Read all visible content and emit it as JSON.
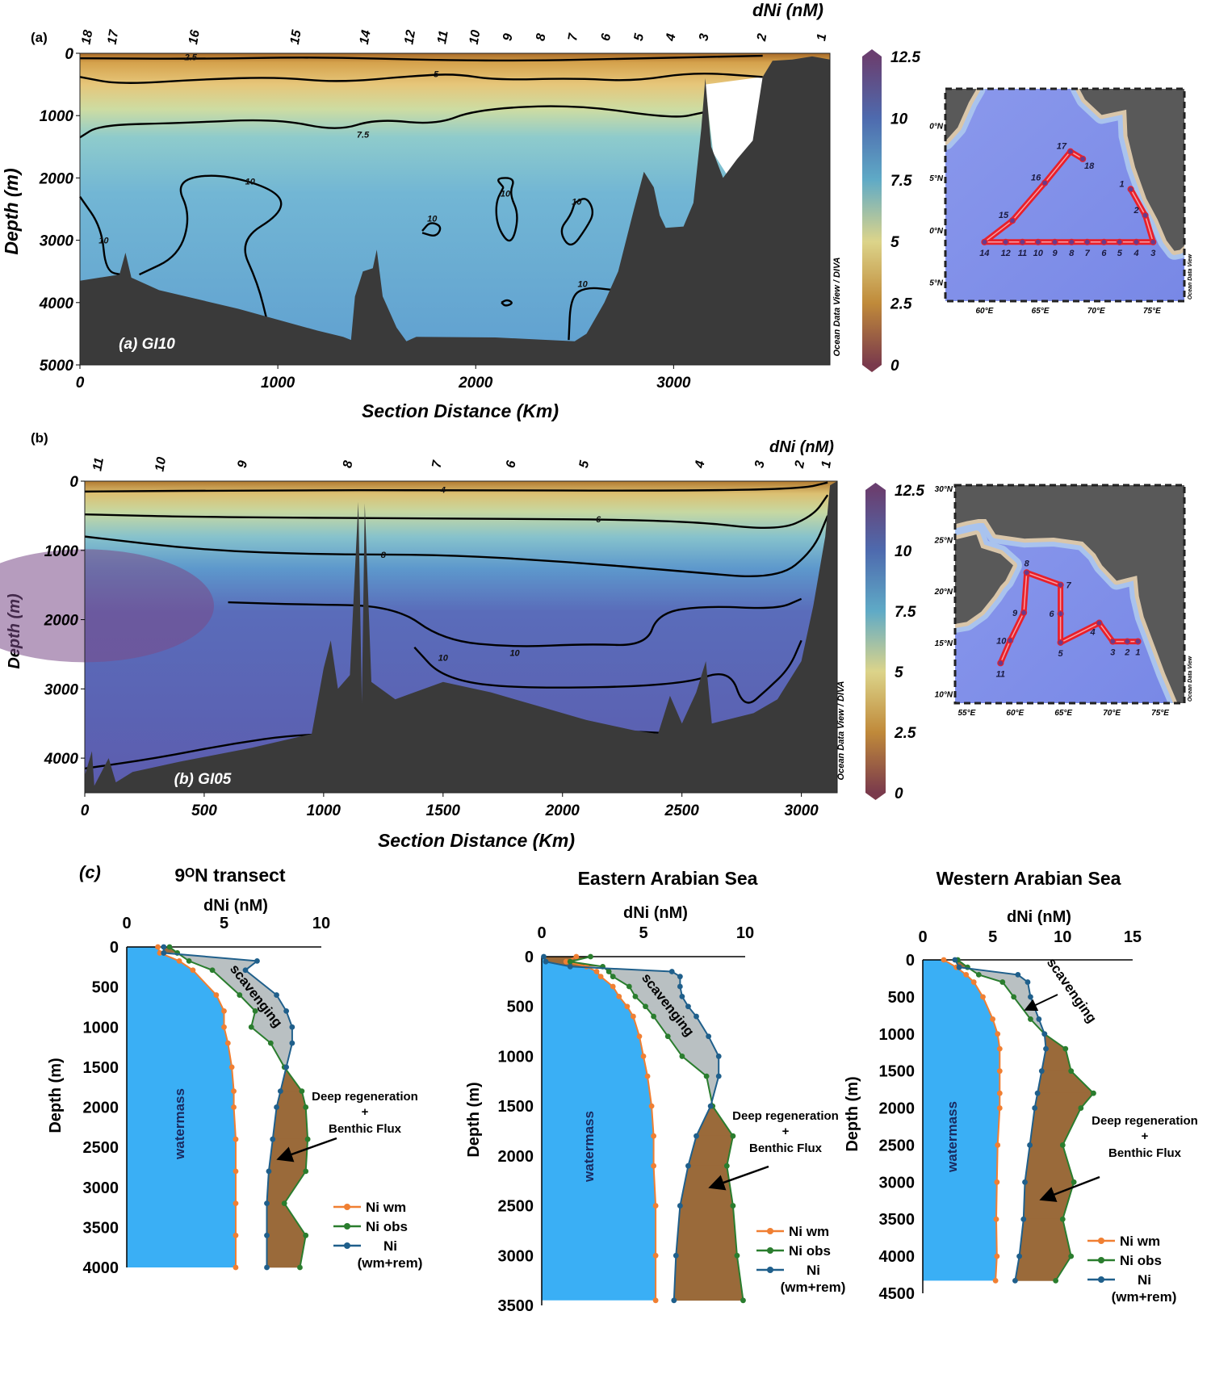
{
  "chart_data": [
    {
      "type": "heatmap",
      "panel_label": "(a)",
      "inner_label": "(a) GI10",
      "xlabel": "Section Distance (Km)",
      "ylabel": "Depth (m)",
      "xlim": [
        0,
        3790
      ],
      "ylim": [
        5000,
        0
      ],
      "xticks": [
        "0",
        "1000",
        "2000",
        "3000"
      ],
      "yticks": [
        "0",
        "1000",
        "2000",
        "3000",
        "4000",
        "5000"
      ],
      "colorbar": {
        "label": "dNi (nM)",
        "ticks": [
          "12.5",
          "10",
          "7.5",
          "5",
          "2.5",
          "0"
        ],
        "range": [
          0,
          12.5
        ]
      },
      "contour_levels": [
        "2.5",
        "5",
        "7.5",
        "10",
        "10",
        "10",
        "10",
        "10",
        "10",
        "10"
      ],
      "stations": [
        {
          "label": "18",
          "km": 36
        },
        {
          "label": "17",
          "km": 167
        },
        {
          "label": "16",
          "km": 577
        },
        {
          "label": "15",
          "km": 1090
        },
        {
          "label": "14",
          "km": 1441
        },
        {
          "label": "12",
          "km": 1667
        },
        {
          "label": "11",
          "km": 1833
        },
        {
          "label": "10",
          "km": 1995
        },
        {
          "label": "9",
          "km": 2162
        },
        {
          "label": "8",
          "km": 2329
        },
        {
          "label": "7",
          "km": 2491
        },
        {
          "label": "6",
          "km": 2658
        },
        {
          "label": "5",
          "km": 2824
        },
        {
          "label": "4",
          "km": 2986
        },
        {
          "label": "3",
          "km": 3153
        },
        {
          "label": "2",
          "km": 3446
        },
        {
          "label": "1",
          "km": 3748
        }
      ],
      "credit": "Ocean Data View / DIVA",
      "map": {
        "lat_labels": [
          "0°N",
          "5°N",
          "0°N",
          "5°N"
        ],
        "lon_labels": [
          "60°E",
          "65°E",
          "70°E",
          "75°E"
        ],
        "credit": "Ocean Data View",
        "stations": [
          {
            "label": "1",
            "lon": 73.1,
            "lat": 13.9
          },
          {
            "label": "2",
            "lon": 74.4,
            "lat": 11.4
          },
          {
            "label": "3",
            "lon": 75.1,
            "lat": 8.85
          },
          {
            "label": "4",
            "lon": 73.6,
            "lat": 8.85
          },
          {
            "label": "5",
            "lon": 72.1,
            "lat": 8.85
          },
          {
            "label": "6",
            "lon": 70.7,
            "lat": 8.85
          },
          {
            "label": "7",
            "lon": 69.2,
            "lat": 8.85
          },
          {
            "label": "8",
            "lon": 67.8,
            "lat": 8.85
          },
          {
            "label": "9",
            "lon": 66.3,
            "lat": 8.85
          },
          {
            "label": "10",
            "lon": 64.8,
            "lat": 8.85
          },
          {
            "label": "11",
            "lon": 63.4,
            "lat": 8.85
          },
          {
            "label": "12",
            "lon": 61.9,
            "lat": 8.85
          },
          {
            "label": "14",
            "lon": 60.0,
            "lat": 8.85
          },
          {
            "label": "15",
            "lon": 62.5,
            "lat": 10.9
          },
          {
            "label": "16",
            "lon": 65.4,
            "lat": 14.5
          },
          {
            "label": "17",
            "lon": 67.7,
            "lat": 17.5
          },
          {
            "label": "18",
            "lon": 68.8,
            "lat": 16.8
          }
        ]
      }
    },
    {
      "type": "heatmap",
      "panel_label": "(b)",
      "inner_label": "(b) GI05",
      "xlabel": "Section Distance (Km)",
      "ylabel": "Depth (m)",
      "xlim": [
        0,
        3150
      ],
      "ylim": [
        4500,
        0
      ],
      "xticks": [
        "0",
        "500",
        "1000",
        "1500",
        "2000",
        "2500",
        "3000"
      ],
      "yticks": [
        "0",
        "1000",
        "2000",
        "3000",
        "4000"
      ],
      "colorbar": {
        "label": "dNi (nM)",
        "ticks": [
          "12.5",
          "10",
          "7.5",
          "5",
          "2.5",
          "0"
        ],
        "range": [
          0,
          12.5
        ]
      },
      "contour_levels": [
        "4",
        "6",
        "8",
        "10",
        "10",
        "10"
      ],
      "stations": [
        {
          "label": "11",
          "km": 56
        },
        {
          "label": "10",
          "km": 317
        },
        {
          "label": "9",
          "km": 660
        },
        {
          "label": "8",
          "km": 1101
        },
        {
          "label": "7",
          "km": 1474
        },
        {
          "label": "6",
          "km": 1784
        },
        {
          "label": "5",
          "km": 2090
        },
        {
          "label": "4",
          "km": 2575
        },
        {
          "label": "3",
          "km": 2825
        },
        {
          "label": "2",
          "km": 2993
        },
        {
          "label": "1",
          "km": 3104
        }
      ],
      "credit": "Ocean Data View / DIVA",
      "map": {
        "lat_labels": [
          "30°N",
          "25°N",
          "20°N",
          "15°N",
          "10°N"
        ],
        "lon_labels": [
          "55°E",
          "60°E",
          "65°E",
          "70°E",
          "75°E"
        ],
        "credit": "Ocean Data View",
        "stations": [
          {
            "label": "1",
            "lon": 72.7,
            "lat": 15.1
          },
          {
            "label": "2",
            "lon": 71.6,
            "lat": 15.1
          },
          {
            "label": "3",
            "lon": 70.1,
            "lat": 15.1
          },
          {
            "label": "4",
            "lon": 68.7,
            "lat": 16.9
          },
          {
            "label": "5",
            "lon": 64.7,
            "lat": 15.0
          },
          {
            "label": "6",
            "lon": 64.7,
            "lat": 17.8
          },
          {
            "label": "7",
            "lon": 64.7,
            "lat": 20.6
          },
          {
            "label": "8",
            "lon": 61.2,
            "lat": 21.8
          },
          {
            "label": "9",
            "lon": 60.9,
            "lat": 17.9
          },
          {
            "label": "10",
            "lon": 59.5,
            "lat": 15.2
          },
          {
            "label": "11",
            "lon": 58.5,
            "lat": 13.0
          }
        ]
      }
    },
    {
      "type": "line",
      "panel_label": "(c)",
      "title": "9ᴼN transect",
      "xlabel": "dNi (nM)",
      "ylabel": "Depth (m)",
      "xlim": [
        0,
        10
      ],
      "ylim": [
        4000,
        0
      ],
      "xticks": [
        "0",
        "5",
        "10"
      ],
      "yticks": [
        "0",
        "500",
        "1000",
        "1500",
        "2000",
        "2500",
        "3000",
        "3500",
        "4000"
      ],
      "depth": [
        0,
        75,
        175,
        290,
        600,
        800,
        1000,
        1200,
        1500,
        1800,
        2000,
        2400,
        2800,
        3200,
        3600,
        4000
      ],
      "series": [
        {
          "name": "Ni wm",
          "values": [
            1.6,
            1.7,
            2.7,
            3.4,
            4.6,
            5.0,
            5.0,
            5.2,
            5.4,
            5.5,
            5.5,
            5.6,
            5.6,
            5.6,
            5.6,
            5.6
          ]
        },
        {
          "name": "Ni obs",
          "values": [
            2.2,
            2.6,
            3.2,
            4.4,
            5.8,
            6.6,
            6.4,
            7.4,
            8.1,
            9.0,
            9.2,
            9.3,
            9.2,
            8.1,
            9.2,
            8.9
          ]
        },
        {
          "name": "Ni",
          "name_line2": "(wm+rem)",
          "values": [
            1.9,
            1.9,
            6.7,
            6.1,
            7.7,
            8.2,
            8.5,
            8.5,
            8.2,
            7.9,
            7.7,
            7.5,
            7.3,
            7.2,
            7.2,
            7.2
          ]
        }
      ],
      "annotations": {
        "watermass": "watermass",
        "scavenging": "scavenging",
        "deep1": "Deep regeneration",
        "plus": "+",
        "deep2": "Benthic Flux"
      }
    },
    {
      "type": "line",
      "title": "Eastern Arabian Sea",
      "xlabel": "dNi (nM)",
      "ylabel": "Depth (m)",
      "xlim": [
        0,
        10
      ],
      "ylim": [
        3500,
        0
      ],
      "xticks": [
        "0",
        "5",
        "10"
      ],
      "yticks": [
        "0",
        "500",
        "1000",
        "1500",
        "2000",
        "2500",
        "3000",
        "3500"
      ],
      "depth": [
        0,
        50,
        100,
        150,
        200,
        300,
        400,
        500,
        600,
        800,
        1000,
        1200,
        1500,
        1800,
        2100,
        2500,
        3000,
        3450
      ],
      "series": [
        {
          "name": "Ni wm",
          "values": [
            1.7,
            1.2,
            2.2,
            2.7,
            2.9,
            3.5,
            3.8,
            4.2,
            4.5,
            4.8,
            5.0,
            5.2,
            5.4,
            5.5,
            5.5,
            5.6,
            5.6,
            5.6
          ]
        },
        {
          "name": "Ni obs",
          "values": [
            2.4,
            1.4,
            3.0,
            3.3,
            3.5,
            4.3,
            4.6,
            5.1,
            5.5,
            6.2,
            6.9,
            8.1,
            8.4,
            9.4,
            9.1,
            9.4,
            9.6,
            9.9
          ]
        },
        {
          "name": "Ni",
          "name_line2": "(wm+rem)",
          "values": [
            0.1,
            0.2,
            1.4,
            6.4,
            6.8,
            6.8,
            6.9,
            7.2,
            7.6,
            8.2,
            8.7,
            8.7,
            8.3,
            7.6,
            7.2,
            6.8,
            6.6,
            6.5
          ]
        }
      ],
      "annotations": {
        "watermass": "watermass",
        "scavenging": "scavenging",
        "deep1": "Deep regeneration",
        "plus": "+",
        "deep2": "Benthic Flux"
      }
    },
    {
      "type": "line",
      "title": "Western Arabian Sea",
      "xlabel": "dNi (nM)",
      "ylabel": "Depth (m)",
      "xlim": [
        0,
        15
      ],
      "ylim": [
        4500,
        0
      ],
      "xticks": [
        "0",
        "5",
        "10",
        "15"
      ],
      "yticks": [
        "0",
        "500",
        "1000",
        "1500",
        "2000",
        "2500",
        "3000",
        "3500",
        "4000",
        "4500"
      ],
      "depth": [
        0,
        100,
        200,
        300,
        500,
        800,
        1000,
        1200,
        1500,
        1800,
        2000,
        2500,
        3000,
        3500,
        4000,
        4330
      ],
      "series": [
        {
          "name": "Ni wm",
          "values": [
            1.5,
            2.4,
            3.1,
            3.65,
            4.3,
            5.0,
            5.35,
            5.5,
            5.5,
            5.5,
            5.5,
            5.35,
            5.3,
            5.25,
            5.3,
            5.2
          ]
        },
        {
          "name": "Ni obs",
          "values": [
            2.5,
            3.2,
            4.0,
            5.7,
            6.5,
            7.7,
            8.7,
            10.2,
            10.6,
            12.2,
            11.3,
            10.0,
            10.8,
            10.0,
            10.6,
            9.5
          ]
        },
        {
          "name": "Ni",
          "name_line2": "(wm+rem)",
          "values": [
            2.3,
            2.6,
            6.8,
            7.5,
            7.7,
            8.3,
            8.7,
            8.8,
            8.5,
            8.2,
            8.0,
            7.65,
            7.3,
            7.2,
            6.9,
            6.6
          ]
        }
      ],
      "annotations": {
        "watermass": "watermass",
        "scavenging": "scavenging",
        "deep1": "Deep regeneration",
        "plus": "+",
        "deep2": "Benthic Flux"
      }
    }
  ],
  "colors": {
    "ni_wm": "#f07f32",
    "ni_obs": "#2a7d2e",
    "ni_rem": "#1f5f8b",
    "watermass_fill": "#3aaff5",
    "scavenging_fill": "#b9c0c2",
    "deep_fill": "#9a6a3a",
    "bathymetry": "#3a3a3a",
    "land": "#595959"
  }
}
